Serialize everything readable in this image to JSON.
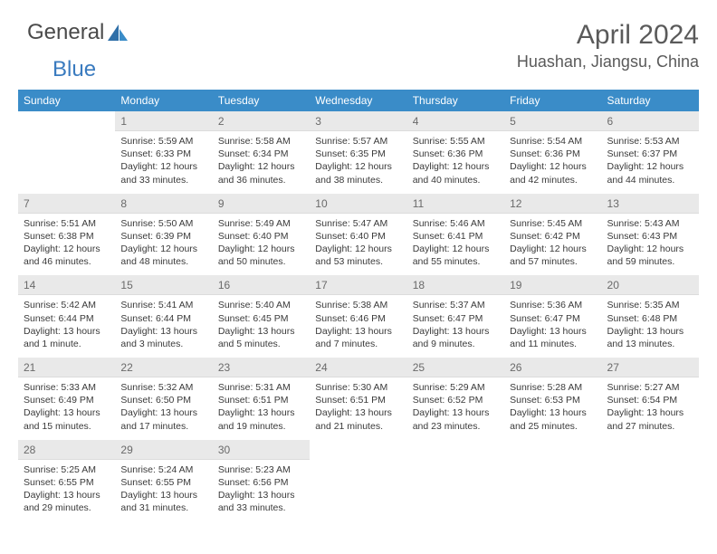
{
  "logo": {
    "text1": "General",
    "text2": "Blue"
  },
  "header": {
    "month": "April 2024",
    "location": "Huashan, Jiangsu, China"
  },
  "colors": {
    "accent": "#3a8cc8",
    "dayHeaderBg": "#e9e9e9",
    "textDark": "#3a3a3a",
    "textMuted": "#6a6a6a",
    "bg": "#ffffff"
  },
  "weekdays": [
    "Sunday",
    "Monday",
    "Tuesday",
    "Wednesday",
    "Thursday",
    "Friday",
    "Saturday"
  ],
  "weeks": [
    [
      {
        "day": "",
        "sunrise": "",
        "sunset": "",
        "daylight": ""
      },
      {
        "day": "1",
        "sunrise": "5:59 AM",
        "sunset": "6:33 PM",
        "daylight": "12 hours and 33 minutes."
      },
      {
        "day": "2",
        "sunrise": "5:58 AM",
        "sunset": "6:34 PM",
        "daylight": "12 hours and 36 minutes."
      },
      {
        "day": "3",
        "sunrise": "5:57 AM",
        "sunset": "6:35 PM",
        "daylight": "12 hours and 38 minutes."
      },
      {
        "day": "4",
        "sunrise": "5:55 AM",
        "sunset": "6:36 PM",
        "daylight": "12 hours and 40 minutes."
      },
      {
        "day": "5",
        "sunrise": "5:54 AM",
        "sunset": "6:36 PM",
        "daylight": "12 hours and 42 minutes."
      },
      {
        "day": "6",
        "sunrise": "5:53 AM",
        "sunset": "6:37 PM",
        "daylight": "12 hours and 44 minutes."
      }
    ],
    [
      {
        "day": "7",
        "sunrise": "5:51 AM",
        "sunset": "6:38 PM",
        "daylight": "12 hours and 46 minutes."
      },
      {
        "day": "8",
        "sunrise": "5:50 AM",
        "sunset": "6:39 PM",
        "daylight": "12 hours and 48 minutes."
      },
      {
        "day": "9",
        "sunrise": "5:49 AM",
        "sunset": "6:40 PM",
        "daylight": "12 hours and 50 minutes."
      },
      {
        "day": "10",
        "sunrise": "5:47 AM",
        "sunset": "6:40 PM",
        "daylight": "12 hours and 53 minutes."
      },
      {
        "day": "11",
        "sunrise": "5:46 AM",
        "sunset": "6:41 PM",
        "daylight": "12 hours and 55 minutes."
      },
      {
        "day": "12",
        "sunrise": "5:45 AM",
        "sunset": "6:42 PM",
        "daylight": "12 hours and 57 minutes."
      },
      {
        "day": "13",
        "sunrise": "5:43 AM",
        "sunset": "6:43 PM",
        "daylight": "12 hours and 59 minutes."
      }
    ],
    [
      {
        "day": "14",
        "sunrise": "5:42 AM",
        "sunset": "6:44 PM",
        "daylight": "13 hours and 1 minute."
      },
      {
        "day": "15",
        "sunrise": "5:41 AM",
        "sunset": "6:44 PM",
        "daylight": "13 hours and 3 minutes."
      },
      {
        "day": "16",
        "sunrise": "5:40 AM",
        "sunset": "6:45 PM",
        "daylight": "13 hours and 5 minutes."
      },
      {
        "day": "17",
        "sunrise": "5:38 AM",
        "sunset": "6:46 PM",
        "daylight": "13 hours and 7 minutes."
      },
      {
        "day": "18",
        "sunrise": "5:37 AM",
        "sunset": "6:47 PM",
        "daylight": "13 hours and 9 minutes."
      },
      {
        "day": "19",
        "sunrise": "5:36 AM",
        "sunset": "6:47 PM",
        "daylight": "13 hours and 11 minutes."
      },
      {
        "day": "20",
        "sunrise": "5:35 AM",
        "sunset": "6:48 PM",
        "daylight": "13 hours and 13 minutes."
      }
    ],
    [
      {
        "day": "21",
        "sunrise": "5:33 AM",
        "sunset": "6:49 PM",
        "daylight": "13 hours and 15 minutes."
      },
      {
        "day": "22",
        "sunrise": "5:32 AM",
        "sunset": "6:50 PM",
        "daylight": "13 hours and 17 minutes."
      },
      {
        "day": "23",
        "sunrise": "5:31 AM",
        "sunset": "6:51 PM",
        "daylight": "13 hours and 19 minutes."
      },
      {
        "day": "24",
        "sunrise": "5:30 AM",
        "sunset": "6:51 PM",
        "daylight": "13 hours and 21 minutes."
      },
      {
        "day": "25",
        "sunrise": "5:29 AM",
        "sunset": "6:52 PM",
        "daylight": "13 hours and 23 minutes."
      },
      {
        "day": "26",
        "sunrise": "5:28 AM",
        "sunset": "6:53 PM",
        "daylight": "13 hours and 25 minutes."
      },
      {
        "day": "27",
        "sunrise": "5:27 AM",
        "sunset": "6:54 PM",
        "daylight": "13 hours and 27 minutes."
      }
    ],
    [
      {
        "day": "28",
        "sunrise": "5:25 AM",
        "sunset": "6:55 PM",
        "daylight": "13 hours and 29 minutes."
      },
      {
        "day": "29",
        "sunrise": "5:24 AM",
        "sunset": "6:55 PM",
        "daylight": "13 hours and 31 minutes."
      },
      {
        "day": "30",
        "sunrise": "5:23 AM",
        "sunset": "6:56 PM",
        "daylight": "13 hours and 33 minutes."
      },
      {
        "day": "",
        "sunrise": "",
        "sunset": "",
        "daylight": ""
      },
      {
        "day": "",
        "sunrise": "",
        "sunset": "",
        "daylight": ""
      },
      {
        "day": "",
        "sunrise": "",
        "sunset": "",
        "daylight": ""
      },
      {
        "day": "",
        "sunrise": "",
        "sunset": "",
        "daylight": ""
      }
    ]
  ]
}
